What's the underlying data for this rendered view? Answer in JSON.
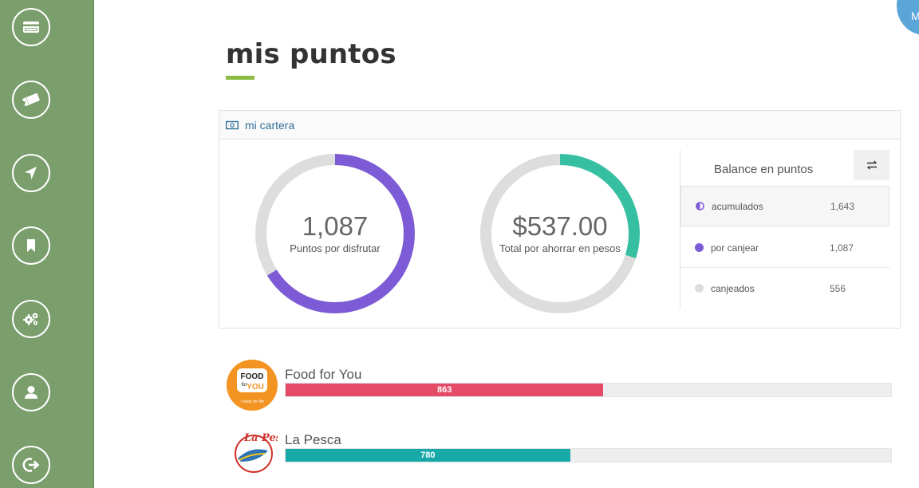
{
  "sidebar": {
    "items": [
      {
        "icon": "credit-card-icon"
      },
      {
        "icon": "ticket-icon"
      },
      {
        "icon": "location-arrow-icon"
      },
      {
        "icon": "bookmark-icon"
      },
      {
        "icon": "gears-icon"
      },
      {
        "icon": "user-icon"
      },
      {
        "icon": "logout-icon"
      }
    ]
  },
  "avatar": {
    "initial": "M"
  },
  "page": {
    "title": "mis puntos"
  },
  "wallet": {
    "header": "mi cartera",
    "points": {
      "value": "1,087",
      "label": "Puntos por disfrutar",
      "fraction": 0.6616,
      "color": "#7d5bd6"
    },
    "savings": {
      "value": "$537.00",
      "label": "Total por ahorrar en pesos",
      "fraction": 0.3,
      "color": "#36c0a1"
    },
    "track_color": "#dddddd"
  },
  "balance": {
    "title": "Balance en puntos",
    "rows": [
      {
        "label": "acumulados",
        "value": "1,643",
        "color": "#7d5bd6",
        "icon": "half-circle-icon"
      },
      {
        "label": "por canjear",
        "value": "1,087",
        "color": "#7d5bd6",
        "icon": "dot-icon"
      },
      {
        "label": "canjeados",
        "value": "556",
        "color": "#dddddd",
        "icon": "dot-icon"
      }
    ]
  },
  "restaurants": [
    {
      "name": "Food for You",
      "points": "863",
      "fraction": 0.525,
      "color": "#e54a66",
      "logo": {
        "line1": "FOOD",
        "line2": "for",
        "line3": "YOU",
        "tagline": ":) easy for life"
      }
    },
    {
      "name": "La Pesca",
      "points": "780",
      "fraction": 0.47,
      "color": "#17a8a8",
      "logo": {
        "line1": "La Pesca"
      }
    }
  ]
}
